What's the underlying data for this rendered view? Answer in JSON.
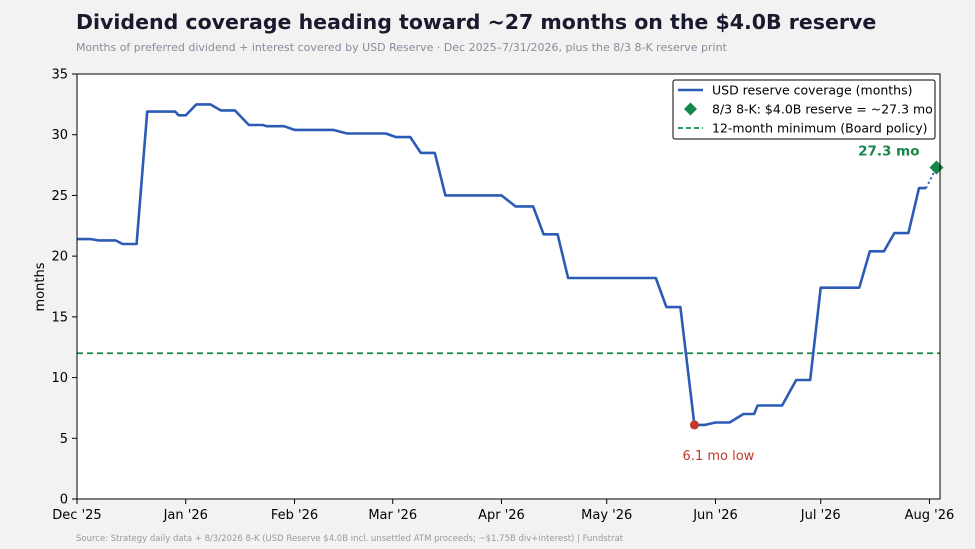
{
  "header": {
    "title": "Dividend coverage heading toward ~27 months on the $4.0B reserve",
    "subtitle": "Months of preferred dividend + interest covered by USD Reserve · Dec 2025–7/31/2026, plus the 8/3 8-K reserve print"
  },
  "footer": {
    "source": "Source: Strategy daily data + 8/3/2026 8-K (USD Reserve $4.0B incl. unsettled ATM proceeds; ~$1.75B div+interest) | Fundstrat"
  },
  "colors": {
    "series": "#2c5bb5",
    "marker": "#16874a",
    "threshold": "#16874a",
    "low": "#c0392b"
  },
  "chart_data": {
    "type": "line",
    "ylabel": "months",
    "ylim": [
      0,
      35
    ],
    "yticks": [
      0,
      5,
      10,
      15,
      20,
      25,
      30,
      35
    ],
    "xlim": [
      "2025-12-01",
      "2026-08-04"
    ],
    "xticks": [
      {
        "date": "2025-12-01",
        "label": "Dec '25"
      },
      {
        "date": "2026-01-01",
        "label": "Jan '26"
      },
      {
        "date": "2026-02-01",
        "label": "Feb '26"
      },
      {
        "date": "2026-03-01",
        "label": "Mar '26"
      },
      {
        "date": "2026-04-01",
        "label": "Apr '26"
      },
      {
        "date": "2026-05-01",
        "label": "May '26"
      },
      {
        "date": "2026-06-01",
        "label": "Jun '26"
      },
      {
        "date": "2026-07-01",
        "label": "Jul '26"
      },
      {
        "date": "2026-08-01",
        "label": "Aug '26"
      }
    ],
    "grid": false,
    "legend_position": "top-right",
    "series": [
      {
        "name": "USD reserve coverage (months)",
        "points": [
          [
            "2025-12-01",
            21.4
          ],
          [
            "2025-12-05",
            21.4
          ],
          [
            "2025-12-07",
            21.3
          ],
          [
            "2025-12-12",
            21.3
          ],
          [
            "2025-12-14",
            21.0
          ],
          [
            "2025-12-18",
            21.0
          ],
          [
            "2025-12-21",
            31.9
          ],
          [
            "2025-12-29",
            31.9
          ],
          [
            "2025-12-30",
            31.6
          ],
          [
            "2026-01-01",
            31.6
          ],
          [
            "2026-01-04",
            32.5
          ],
          [
            "2026-01-08",
            32.5
          ],
          [
            "2026-01-11",
            32.0
          ],
          [
            "2026-01-15",
            32.0
          ],
          [
            "2026-01-19",
            30.8
          ],
          [
            "2026-01-23",
            30.8
          ],
          [
            "2026-01-24",
            30.7
          ],
          [
            "2026-01-29",
            30.7
          ],
          [
            "2026-02-01",
            30.4
          ],
          [
            "2026-02-12",
            30.4
          ],
          [
            "2026-02-16",
            30.1
          ],
          [
            "2026-02-21",
            30.1
          ],
          [
            "2026-02-27",
            30.1
          ],
          [
            "2026-03-02",
            29.8
          ],
          [
            "2026-03-06",
            29.8
          ],
          [
            "2026-03-09",
            28.5
          ],
          [
            "2026-03-13",
            28.5
          ],
          [
            "2026-03-16",
            25.0
          ],
          [
            "2026-03-23",
            25.0
          ],
          [
            "2026-04-01",
            25.0
          ],
          [
            "2026-04-05",
            24.1
          ],
          [
            "2026-04-10",
            24.1
          ],
          [
            "2026-04-13",
            21.8
          ],
          [
            "2026-04-17",
            21.8
          ],
          [
            "2026-04-20",
            18.2
          ],
          [
            "2026-04-27",
            18.2
          ],
          [
            "2026-05-15",
            18.2
          ],
          [
            "2026-05-18",
            15.8
          ],
          [
            "2026-05-22",
            15.8
          ],
          [
            "2026-05-26",
            6.1
          ],
          [
            "2026-05-29",
            6.1
          ],
          [
            "2026-06-01",
            6.3
          ],
          [
            "2026-06-05",
            6.3
          ],
          [
            "2026-06-09",
            7.0
          ],
          [
            "2026-06-12",
            7.0
          ],
          [
            "2026-06-13",
            7.7
          ],
          [
            "2026-06-20",
            7.7
          ],
          [
            "2026-06-24",
            9.8
          ],
          [
            "2026-06-28",
            9.8
          ],
          [
            "2026-07-01",
            17.4
          ],
          [
            "2026-07-12",
            17.4
          ],
          [
            "2026-07-15",
            20.4
          ],
          [
            "2026-07-19",
            20.4
          ],
          [
            "2026-07-22",
            21.9
          ],
          [
            "2026-07-26",
            21.9
          ],
          [
            "2026-07-29",
            25.6
          ],
          [
            "2026-07-31",
            25.6
          ]
        ]
      }
    ],
    "marker": {
      "name": "8/3 8-K: $4.0B reserve = ~27.3 mo",
      "date": "2026-08-03",
      "value": 27.3,
      "label": "27.3 mo"
    },
    "threshold": {
      "name": "12-month minimum (Board policy)",
      "value": 12
    },
    "low_point": {
      "date": "2026-05-26",
      "value": 6.1,
      "label": "6.1 mo low"
    }
  }
}
